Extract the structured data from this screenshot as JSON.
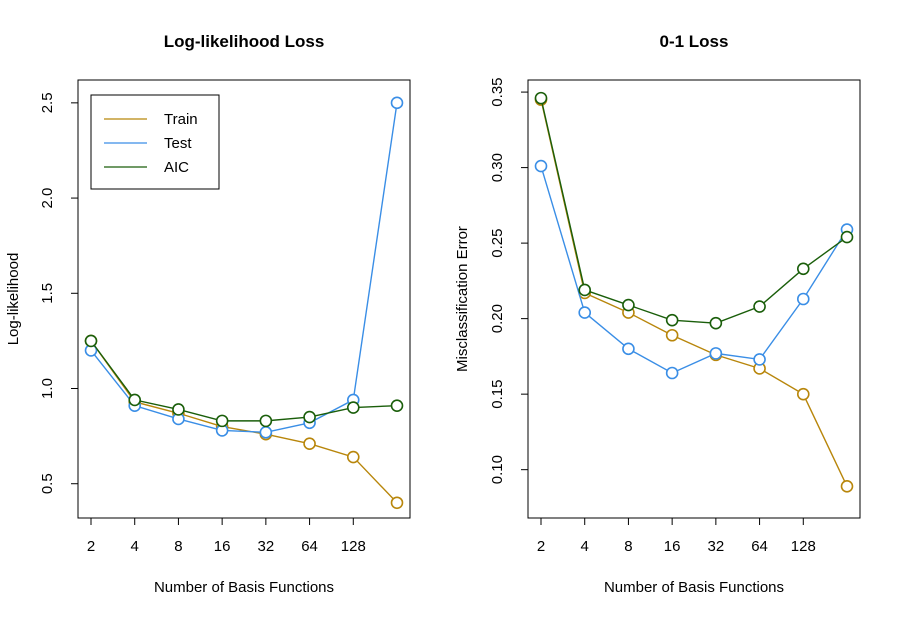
{
  "chart_data": [
    {
      "type": "line",
      "title": "Log-likelihood Loss",
      "xlabel": "Number of Basis Functions",
      "ylabel": "Log-likelihood",
      "x": [
        2,
        4,
        8,
        16,
        32,
        64,
        128,
        256
      ],
      "x_tick_labels": [
        "2",
        "4",
        "8",
        "16",
        "32",
        "64",
        "128"
      ],
      "ylim": [
        0.32,
        2.62
      ],
      "y_ticks": [
        0.5,
        1.0,
        1.5,
        2.0,
        2.5
      ],
      "y_tick_labels": [
        "0.5",
        "1.0",
        "1.5",
        "2.0",
        "2.5"
      ],
      "x_scale": "log2",
      "legend_position": "top-left",
      "grid": false,
      "series": [
        {
          "name": "Train",
          "color": "#b8860b",
          "values": [
            1.25,
            0.93,
            0.87,
            0.8,
            0.76,
            0.71,
            0.64,
            0.4
          ]
        },
        {
          "name": "Test",
          "color": "#3a8ee6",
          "values": [
            1.2,
            0.91,
            0.84,
            0.78,
            0.77,
            0.82,
            0.94,
            2.5
          ]
        },
        {
          "name": "AIC",
          "color": "#1a5e0a",
          "values": [
            1.25,
            0.94,
            0.89,
            0.83,
            0.83,
            0.85,
            0.9,
            0.91
          ]
        }
      ]
    },
    {
      "type": "line",
      "title": "0-1 Loss",
      "xlabel": "Number of Basis Functions",
      "ylabel": "Misclassification Error",
      "x": [
        2,
        4,
        8,
        16,
        32,
        64,
        128,
        256
      ],
      "x_tick_labels": [
        "2",
        "4",
        "8",
        "16",
        "32",
        "64",
        "128"
      ],
      "ylim": [
        0.068,
        0.358
      ],
      "y_ticks": [
        0.1,
        0.15,
        0.2,
        0.25,
        0.3,
        0.35
      ],
      "y_tick_labels": [
        "0.10",
        "0.15",
        "0.20",
        "0.25",
        "0.30",
        "0.35"
      ],
      "x_scale": "log2",
      "grid": false,
      "series": [
        {
          "name": "Train",
          "color": "#b8860b",
          "values": [
            0.345,
            0.217,
            0.204,
            0.189,
            0.176,
            0.167,
            0.15,
            0.089
          ]
        },
        {
          "name": "Test",
          "color": "#3a8ee6",
          "values": [
            0.301,
            0.204,
            0.18,
            0.164,
            0.177,
            0.173,
            0.213,
            0.259
          ]
        },
        {
          "name": "AIC",
          "color": "#1a5e0a",
          "values": [
            0.346,
            0.219,
            0.209,
            0.199,
            0.197,
            0.208,
            0.233,
            0.254
          ]
        }
      ]
    }
  ]
}
